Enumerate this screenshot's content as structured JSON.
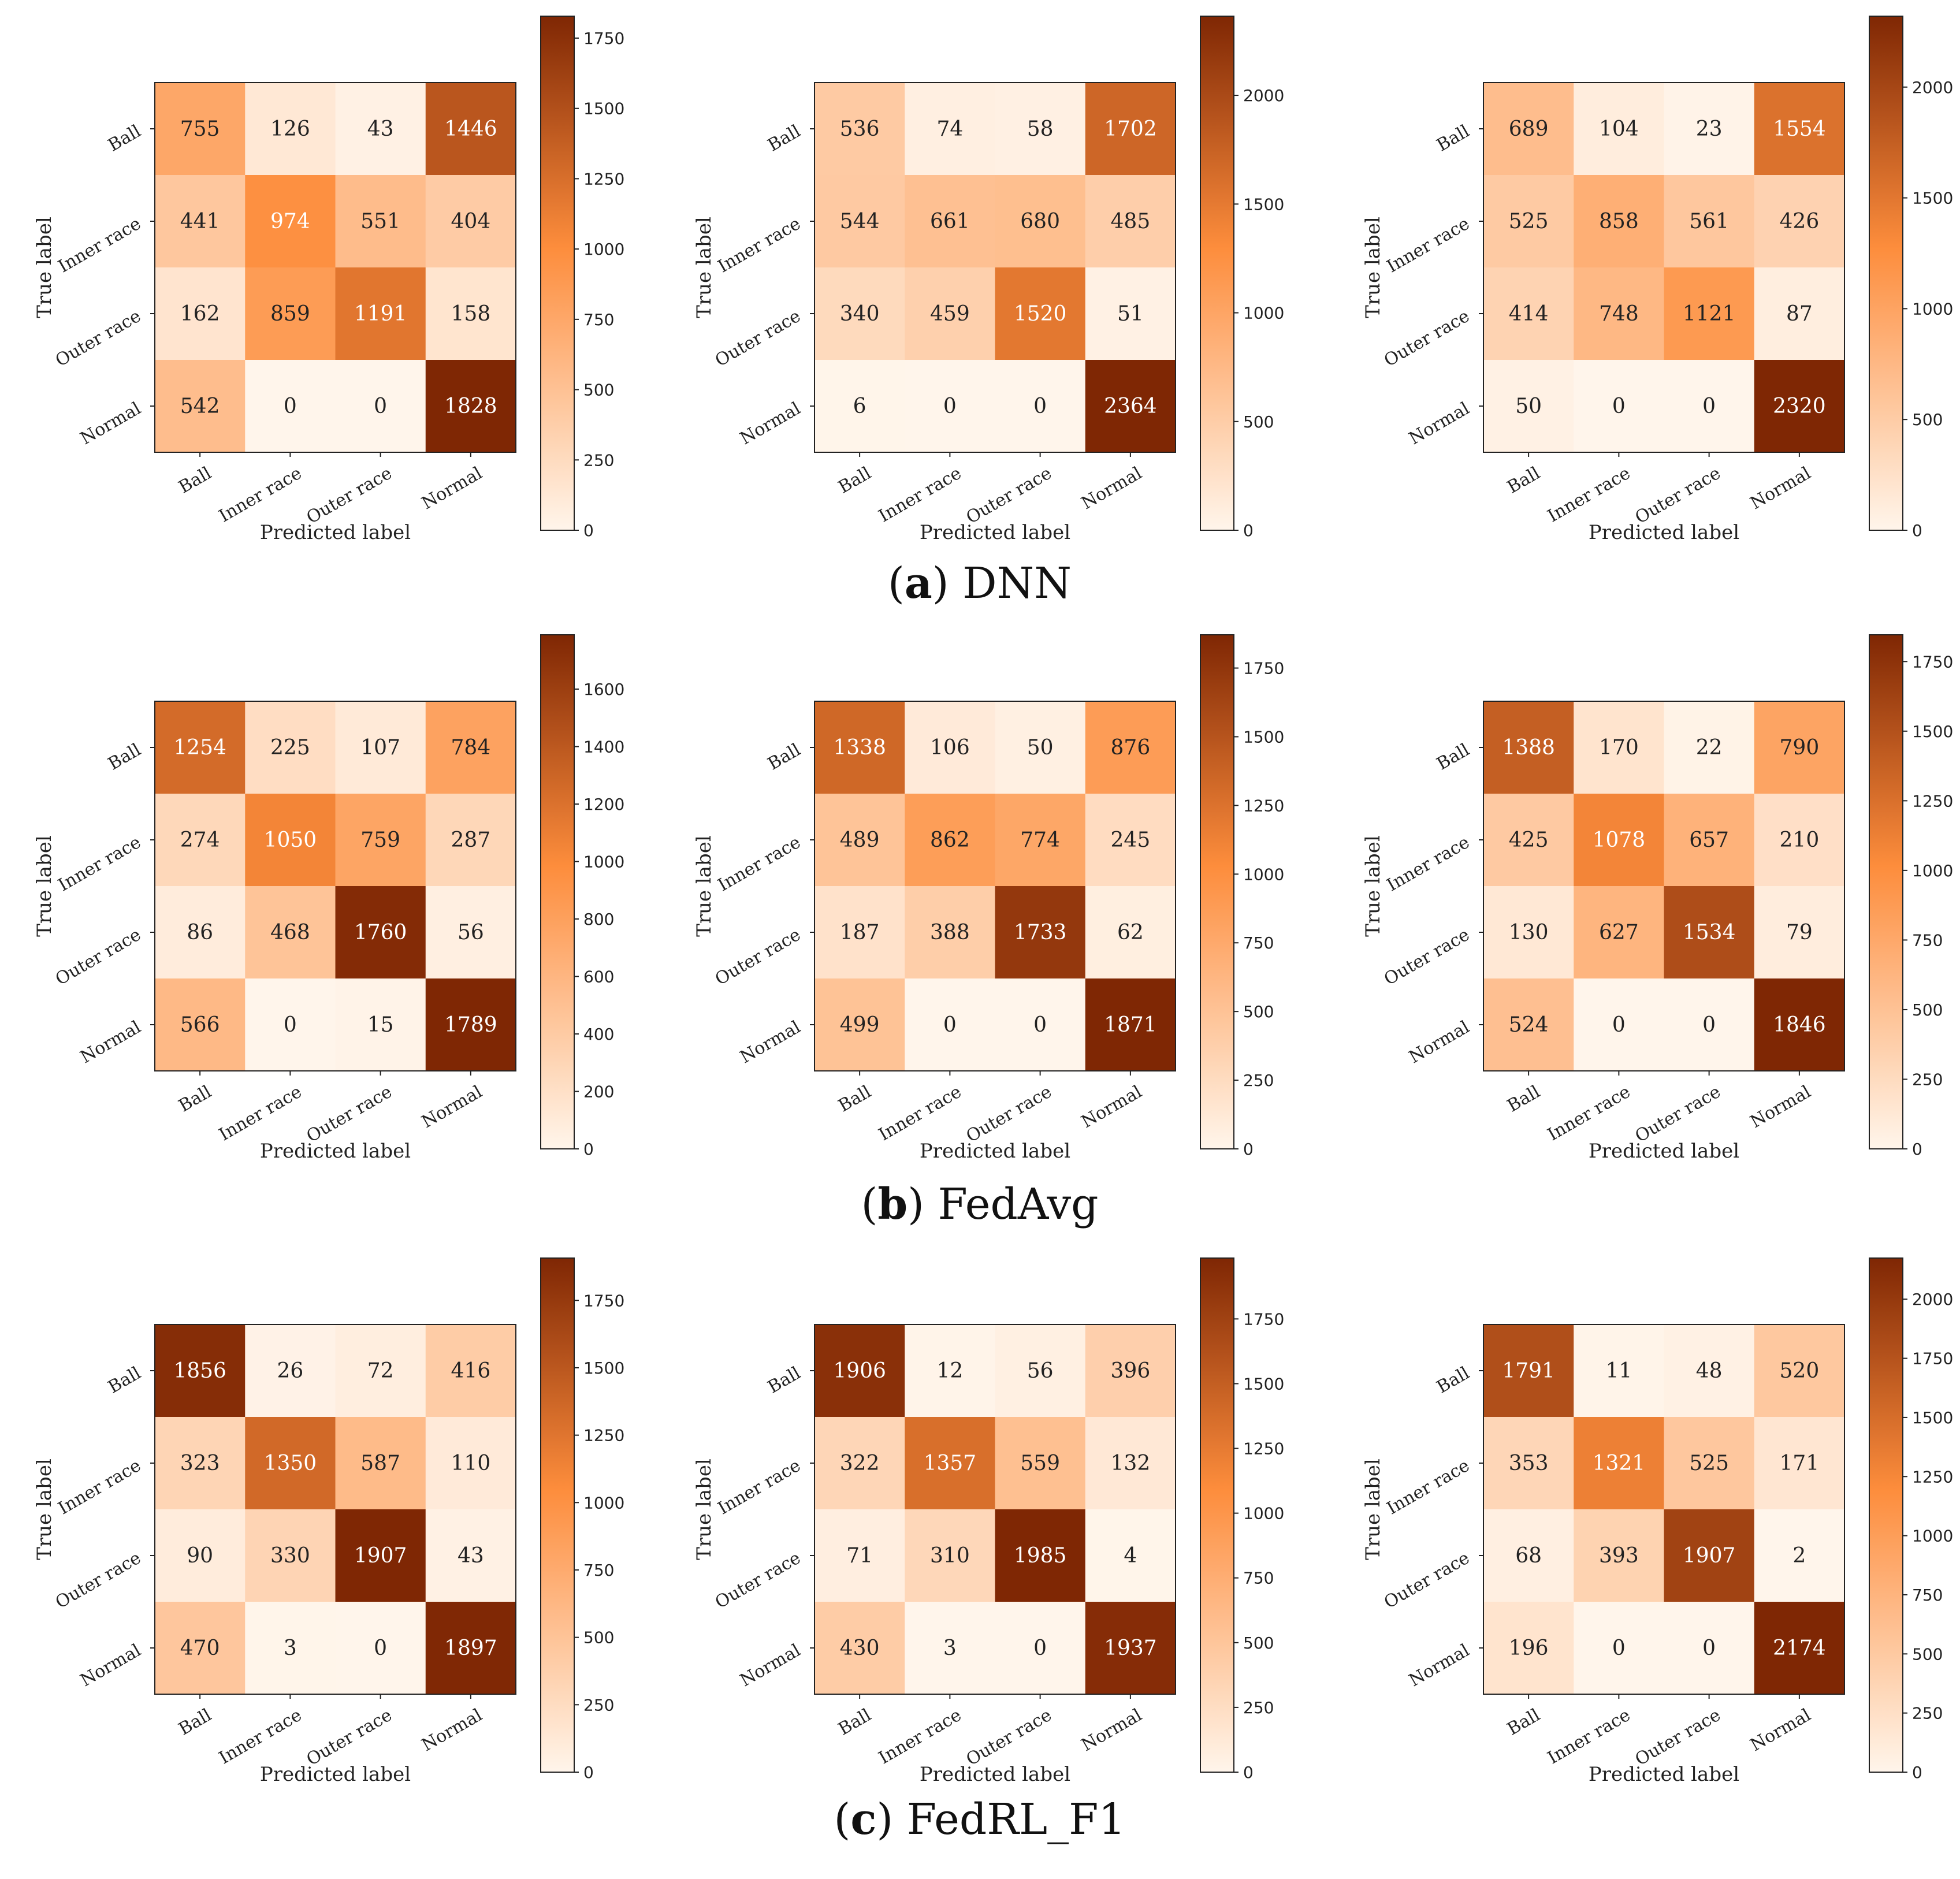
{
  "colors": {
    "low": "#fff5eb",
    "mid": "#fd8d3c",
    "high": "#7f2704"
  },
  "panels": [
    {
      "caption": {
        "letter": "a",
        "name": "DNN"
      },
      "charts": [
        {
          "type": "heatmap",
          "classes": [
            "Ball",
            "Inner race",
            "Outer race",
            "Normal"
          ],
          "xlabel": "Predicted label",
          "ylabel": "True label",
          "matrix": [
            [
              755,
              126,
              43,
              1446
            ],
            [
              441,
              974,
              551,
              404
            ],
            [
              162,
              859,
              1191,
              158
            ],
            [
              542,
              0,
              0,
              1828
            ]
          ],
          "colorbar": {
            "min": 0,
            "max": 1828,
            "ticks": [
              0,
              250,
              500,
              750,
              1000,
              1250,
              1500,
              1750
            ]
          }
        },
        {
          "type": "heatmap",
          "classes": [
            "Ball",
            "Inner race",
            "Outer race",
            "Normal"
          ],
          "xlabel": "Predicted label",
          "ylabel": "True label",
          "matrix": [
            [
              536,
              74,
              58,
              1702
            ],
            [
              544,
              661,
              680,
              485
            ],
            [
              340,
              459,
              1520,
              51
            ],
            [
              6,
              0,
              0,
              2364
            ]
          ],
          "colorbar": {
            "min": 0,
            "max": 2364,
            "ticks": [
              0,
              500,
              1000,
              1500,
              2000
            ]
          }
        },
        {
          "type": "heatmap",
          "classes": [
            "Ball",
            "Inner race",
            "Outer race",
            "Normal"
          ],
          "xlabel": "Predicted label",
          "ylabel": "True label",
          "matrix": [
            [
              689,
              104,
              23,
              1554
            ],
            [
              525,
              858,
              561,
              426
            ],
            [
              414,
              748,
              1121,
              87
            ],
            [
              50,
              0,
              0,
              2320
            ]
          ],
          "colorbar": {
            "min": 0,
            "max": 2320,
            "ticks": [
              0,
              500,
              1000,
              1500,
              2000
            ]
          }
        }
      ]
    },
    {
      "caption": {
        "letter": "b",
        "name": "FedAvg"
      },
      "charts": [
        {
          "type": "heatmap",
          "classes": [
            "Ball",
            "Inner race",
            "Outer race",
            "Normal"
          ],
          "xlabel": "Predicted label",
          "ylabel": "True label",
          "matrix": [
            [
              1254,
              225,
              107,
              784
            ],
            [
              274,
              1050,
              759,
              287
            ],
            [
              86,
              468,
              1760,
              56
            ],
            [
              566,
              0,
              15,
              1789
            ]
          ],
          "colorbar": {
            "min": 0,
            "max": 1789,
            "ticks": [
              0,
              200,
              400,
              600,
              800,
              1000,
              1200,
              1400,
              1600
            ]
          }
        },
        {
          "type": "heatmap",
          "classes": [
            "Ball",
            "Inner race",
            "Outer race",
            "Normal"
          ],
          "xlabel": "Predicted label",
          "ylabel": "True label",
          "matrix": [
            [
              1338,
              106,
              50,
              876
            ],
            [
              489,
              862,
              774,
              245
            ],
            [
              187,
              388,
              1733,
              62
            ],
            [
              499,
              0,
              0,
              1871
            ]
          ],
          "colorbar": {
            "min": 0,
            "max": 1871,
            "ticks": [
              0,
              250,
              500,
              750,
              1000,
              1250,
              1500,
              1750
            ]
          }
        },
        {
          "type": "heatmap",
          "classes": [
            "Ball",
            "Inner race",
            "Outer race",
            "Normal"
          ],
          "xlabel": "Predicted label",
          "ylabel": "True label",
          "matrix": [
            [
              1388,
              170,
              22,
              790
            ],
            [
              425,
              1078,
              657,
              210
            ],
            [
              130,
              627,
              1534,
              79
            ],
            [
              524,
              0,
              0,
              1846
            ]
          ],
          "colorbar": {
            "min": 0,
            "max": 1846,
            "ticks": [
              0,
              250,
              500,
              750,
              1000,
              1250,
              1500,
              1750
            ]
          }
        }
      ]
    },
    {
      "caption": {
        "letter": "c",
        "name": "FedRL_F1"
      },
      "charts": [
        {
          "type": "heatmap",
          "classes": [
            "Ball",
            "Inner race",
            "Outer race",
            "Normal"
          ],
          "xlabel": "Predicted label",
          "ylabel": "True label",
          "matrix": [
            [
              1856,
              26,
              72,
              416
            ],
            [
              323,
              1350,
              587,
              110
            ],
            [
              90,
              330,
              1907,
              43
            ],
            [
              470,
              3,
              0,
              1897
            ]
          ],
          "colorbar": {
            "min": 0,
            "max": 1907,
            "ticks": [
              0,
              250,
              500,
              750,
              1000,
              1250,
              1500,
              1750
            ]
          }
        },
        {
          "type": "heatmap",
          "classes": [
            "Ball",
            "Inner race",
            "Outer race",
            "Normal"
          ],
          "xlabel": "Predicted label",
          "ylabel": "True label",
          "matrix": [
            [
              1906,
              12,
              56,
              396
            ],
            [
              322,
              1357,
              559,
              132
            ],
            [
              71,
              310,
              1985,
              4
            ],
            [
              430,
              3,
              0,
              1937
            ]
          ],
          "colorbar": {
            "min": 0,
            "max": 1985,
            "ticks": [
              0,
              250,
              500,
              750,
              1000,
              1250,
              1500,
              1750
            ]
          }
        },
        {
          "type": "heatmap",
          "classes": [
            "Ball",
            "Inner race",
            "Outer race",
            "Normal"
          ],
          "xlabel": "Predicted label",
          "ylabel": "True label",
          "matrix": [
            [
              1791,
              11,
              48,
              520
            ],
            [
              353,
              1321,
              525,
              171
            ],
            [
              68,
              393,
              1907,
              2
            ],
            [
              196,
              0,
              0,
              2174
            ]
          ],
          "colorbar": {
            "min": 0,
            "max": 2174,
            "ticks": [
              0,
              250,
              500,
              750,
              1000,
              1250,
              1500,
              1750,
              2000
            ]
          }
        }
      ]
    }
  ]
}
